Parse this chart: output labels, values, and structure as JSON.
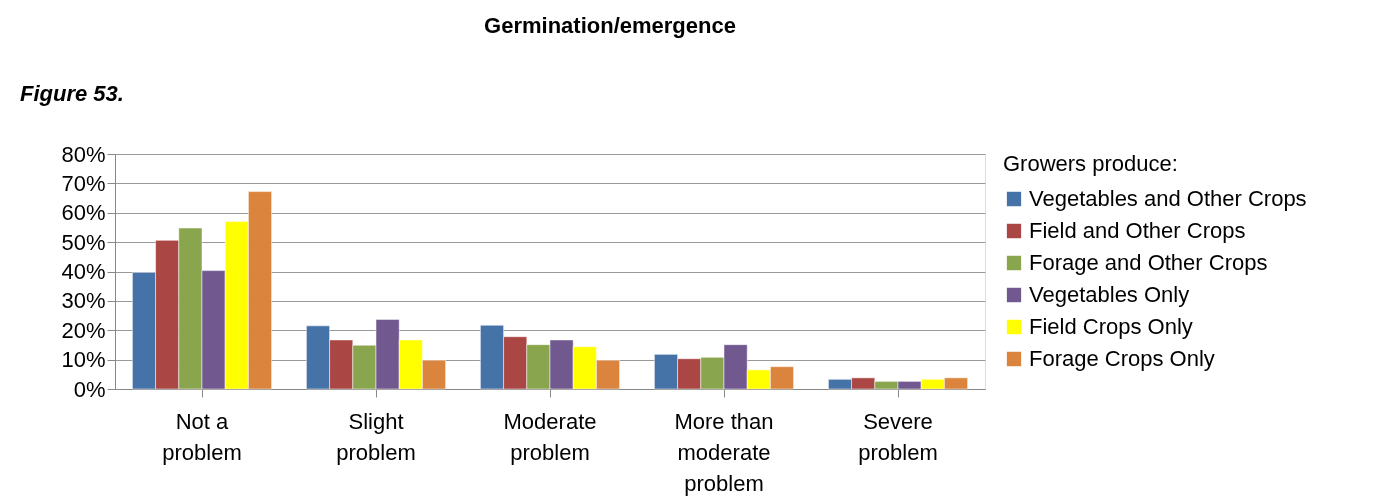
{
  "chart_data": {
    "type": "bar",
    "title": "Germination/emergence",
    "annotations": [
      "Figure 53."
    ],
    "legend_title": "Growers produce:",
    "categories": [
      "Not a problem",
      "Slight problem",
      "Moderate problem",
      "More than moderate problem",
      "Severe problem"
    ],
    "series": [
      {
        "name": "Vegetables and Other Crops",
        "color": "#4572a7",
        "values": [
          39.7,
          21.5,
          21.7,
          11.8,
          3.3
        ]
      },
      {
        "name": "Field and Other Crops",
        "color": "#aa4643",
        "values": [
          50.6,
          16.7,
          17.8,
          10.3,
          3.8
        ]
      },
      {
        "name": "Forage and Other Crops",
        "color": "#89a54e",
        "values": [
          54.8,
          14.9,
          15.1,
          10.8,
          2.6
        ]
      },
      {
        "name": "Vegetables Only",
        "color": "#71588f",
        "values": [
          40.3,
          23.7,
          16.7,
          15.1,
          2.6
        ]
      },
      {
        "name": "Field Crops Only",
        "color": "#ffff00",
        "values": [
          57.0,
          16.7,
          14.4,
          6.5,
          3.3
        ]
      },
      {
        "name": "Forage Crops Only",
        "color": "#db843d",
        "values": [
          67.2,
          9.8,
          9.8,
          7.6,
          3.8
        ]
      }
    ],
    "ylim": [
      0,
      80
    ],
    "yticks": [
      {
        "value": 0,
        "label": "0%"
      },
      {
        "value": 10,
        "label": "10%"
      },
      {
        "value": 20,
        "label": "20%"
      },
      {
        "value": 30,
        "label": "30%"
      },
      {
        "value": 40,
        "label": "40%"
      },
      {
        "value": 50,
        "label": "50%"
      },
      {
        "value": 60,
        "label": "60%"
      },
      {
        "value": 70,
        "label": "70%"
      },
      {
        "value": 80,
        "label": "80%"
      }
    ],
    "grid": "y",
    "legend": "right"
  }
}
